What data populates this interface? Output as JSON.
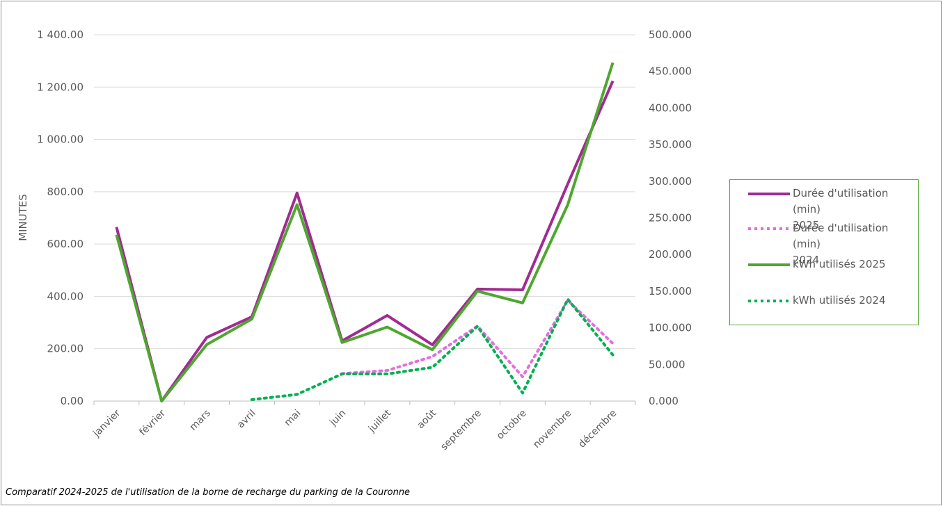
{
  "caption": "Comparatif 2024-2025 de l'utilisation de la borne de recharge du parking de la Couronne",
  "chart_data": {
    "type": "line",
    "title": "",
    "xlabel": "",
    "ylabel": "MINUTES",
    "y2label": "",
    "categories": [
      "janvier",
      "février",
      "mars",
      "avril",
      "mai",
      "juin",
      "juillet",
      "août",
      "septembre",
      "octobre",
      "novembre",
      "décembre"
    ],
    "ylim": [
      0,
      1400
    ],
    "yticks": [
      "0.00",
      "200.00",
      "400.00",
      "600.00",
      "800.00",
      "1 000.00",
      "1 200.00",
      "1 400.00"
    ],
    "y2lim": [
      0,
      500
    ],
    "y2ticks": [
      "0.000",
      "50.000",
      "100.000",
      "150.000",
      "200.000",
      "250.000",
      "300.000",
      "350.000",
      "400.000",
      "450.000",
      "500.000"
    ],
    "grid": true,
    "legend_position": "right",
    "series": [
      {
        "name": "Durée d'utilisation (min) 2025",
        "axis": "left",
        "style": "solid",
        "color": "#a02b93",
        "values": [
          665,
          0,
          243,
          322,
          795,
          230,
          327,
          215,
          428,
          425,
          830,
          1223
        ]
      },
      {
        "name": "Durée d'utilisation (min) 2024",
        "axis": "left",
        "style": "dotted",
        "color": "#e36ee0",
        "values": [
          null,
          null,
          null,
          null,
          null,
          105,
          117,
          170,
          287,
          93,
          385,
          220
        ]
      },
      {
        "name": "kWh utilisés 2025",
        "axis": "right",
        "style": "solid",
        "color": "#4ea72e",
        "values": [
          227,
          0,
          77,
          112,
          268,
          80,
          101,
          70,
          150,
          134,
          268,
          462
        ]
      },
      {
        "name": "kWh utilisés 2024",
        "axis": "right",
        "style": "dotted",
        "color": "#00b050",
        "values": [
          null,
          null,
          null,
          2,
          9,
          37,
          37,
          46,
          102,
          11,
          139,
          63
        ]
      }
    ]
  },
  "legend": [
    {
      "line1": "Durée d'utilisation (min)",
      "line2": "2025"
    },
    {
      "line1": "Durée d'utilisation (min)",
      "line2": "2024"
    },
    {
      "line1": "kWh utilisés 2025",
      "line2": ""
    },
    {
      "line1": "kWh utilisés 2024",
      "line2": ""
    }
  ]
}
